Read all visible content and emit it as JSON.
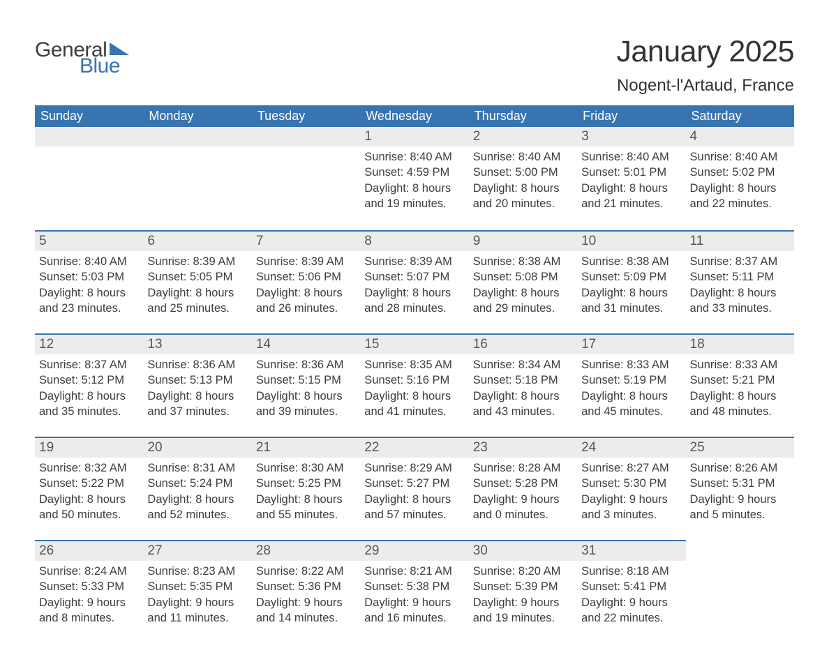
{
  "logo": {
    "word1": "General",
    "word2": "Blue"
  },
  "title": "January 2025",
  "location": "Nogent-l'Artaud, France",
  "colors": {
    "header_bg": "#3874b0",
    "header_text": "#ffffff",
    "daynum_bg": "#ececec",
    "row_border": "#3874b0",
    "text": "#3d3d3d",
    "title_text": "#333333",
    "logo_blue": "#3874b0"
  },
  "fonts": {
    "month_title_pt": 43,
    "location_pt": 24,
    "dayheader_pt": 18,
    "daynum_pt": 19,
    "body_pt": 16.5,
    "logo_pt": 30
  },
  "day_headers": [
    "Sunday",
    "Monday",
    "Tuesday",
    "Wednesday",
    "Thursday",
    "Friday",
    "Saturday"
  ],
  "weeks": [
    [
      {
        "blank": true
      },
      {
        "blank": true
      },
      {
        "blank": true
      },
      {
        "n": "1",
        "sr": "Sunrise: 8:40 AM",
        "ss": "Sunset: 4:59 PM",
        "d1": "Daylight: 8 hours",
        "d2": "and 19 minutes."
      },
      {
        "n": "2",
        "sr": "Sunrise: 8:40 AM",
        "ss": "Sunset: 5:00 PM",
        "d1": "Daylight: 8 hours",
        "d2": "and 20 minutes."
      },
      {
        "n": "3",
        "sr": "Sunrise: 8:40 AM",
        "ss": "Sunset: 5:01 PM",
        "d1": "Daylight: 8 hours",
        "d2": "and 21 minutes."
      },
      {
        "n": "4",
        "sr": "Sunrise: 8:40 AM",
        "ss": "Sunset: 5:02 PM",
        "d1": "Daylight: 8 hours",
        "d2": "and 22 minutes."
      }
    ],
    [
      {
        "n": "5",
        "sr": "Sunrise: 8:40 AM",
        "ss": "Sunset: 5:03 PM",
        "d1": "Daylight: 8 hours",
        "d2": "and 23 minutes."
      },
      {
        "n": "6",
        "sr": "Sunrise: 8:39 AM",
        "ss": "Sunset: 5:05 PM",
        "d1": "Daylight: 8 hours",
        "d2": "and 25 minutes."
      },
      {
        "n": "7",
        "sr": "Sunrise: 8:39 AM",
        "ss": "Sunset: 5:06 PM",
        "d1": "Daylight: 8 hours",
        "d2": "and 26 minutes."
      },
      {
        "n": "8",
        "sr": "Sunrise: 8:39 AM",
        "ss": "Sunset: 5:07 PM",
        "d1": "Daylight: 8 hours",
        "d2": "and 28 minutes."
      },
      {
        "n": "9",
        "sr": "Sunrise: 8:38 AM",
        "ss": "Sunset: 5:08 PM",
        "d1": "Daylight: 8 hours",
        "d2": "and 29 minutes."
      },
      {
        "n": "10",
        "sr": "Sunrise: 8:38 AM",
        "ss": "Sunset: 5:09 PM",
        "d1": "Daylight: 8 hours",
        "d2": "and 31 minutes."
      },
      {
        "n": "11",
        "sr": "Sunrise: 8:37 AM",
        "ss": "Sunset: 5:11 PM",
        "d1": "Daylight: 8 hours",
        "d2": "and 33 minutes."
      }
    ],
    [
      {
        "n": "12",
        "sr": "Sunrise: 8:37 AM",
        "ss": "Sunset: 5:12 PM",
        "d1": "Daylight: 8 hours",
        "d2": "and 35 minutes."
      },
      {
        "n": "13",
        "sr": "Sunrise: 8:36 AM",
        "ss": "Sunset: 5:13 PM",
        "d1": "Daylight: 8 hours",
        "d2": "and 37 minutes."
      },
      {
        "n": "14",
        "sr": "Sunrise: 8:36 AM",
        "ss": "Sunset: 5:15 PM",
        "d1": "Daylight: 8 hours",
        "d2": "and 39 minutes."
      },
      {
        "n": "15",
        "sr": "Sunrise: 8:35 AM",
        "ss": "Sunset: 5:16 PM",
        "d1": "Daylight: 8 hours",
        "d2": "and 41 minutes."
      },
      {
        "n": "16",
        "sr": "Sunrise: 8:34 AM",
        "ss": "Sunset: 5:18 PM",
        "d1": "Daylight: 8 hours",
        "d2": "and 43 minutes."
      },
      {
        "n": "17",
        "sr": "Sunrise: 8:33 AM",
        "ss": "Sunset: 5:19 PM",
        "d1": "Daylight: 8 hours",
        "d2": "and 45 minutes."
      },
      {
        "n": "18",
        "sr": "Sunrise: 8:33 AM",
        "ss": "Sunset: 5:21 PM",
        "d1": "Daylight: 8 hours",
        "d2": "and 48 minutes."
      }
    ],
    [
      {
        "n": "19",
        "sr": "Sunrise: 8:32 AM",
        "ss": "Sunset: 5:22 PM",
        "d1": "Daylight: 8 hours",
        "d2": "and 50 minutes."
      },
      {
        "n": "20",
        "sr": "Sunrise: 8:31 AM",
        "ss": "Sunset: 5:24 PM",
        "d1": "Daylight: 8 hours",
        "d2": "and 52 minutes."
      },
      {
        "n": "21",
        "sr": "Sunrise: 8:30 AM",
        "ss": "Sunset: 5:25 PM",
        "d1": "Daylight: 8 hours",
        "d2": "and 55 minutes."
      },
      {
        "n": "22",
        "sr": "Sunrise: 8:29 AM",
        "ss": "Sunset: 5:27 PM",
        "d1": "Daylight: 8 hours",
        "d2": "and 57 minutes."
      },
      {
        "n": "23",
        "sr": "Sunrise: 8:28 AM",
        "ss": "Sunset: 5:28 PM",
        "d1": "Daylight: 9 hours",
        "d2": "and 0 minutes."
      },
      {
        "n": "24",
        "sr": "Sunrise: 8:27 AM",
        "ss": "Sunset: 5:30 PM",
        "d1": "Daylight: 9 hours",
        "d2": "and 3 minutes."
      },
      {
        "n": "25",
        "sr": "Sunrise: 8:26 AM",
        "ss": "Sunset: 5:31 PM",
        "d1": "Daylight: 9 hours",
        "d2": "and 5 minutes."
      }
    ],
    [
      {
        "n": "26",
        "sr": "Sunrise: 8:24 AM",
        "ss": "Sunset: 5:33 PM",
        "d1": "Daylight: 9 hours",
        "d2": "and 8 minutes."
      },
      {
        "n": "27",
        "sr": "Sunrise: 8:23 AM",
        "ss": "Sunset: 5:35 PM",
        "d1": "Daylight: 9 hours",
        "d2": "and 11 minutes."
      },
      {
        "n": "28",
        "sr": "Sunrise: 8:22 AM",
        "ss": "Sunset: 5:36 PM",
        "d1": "Daylight: 9 hours",
        "d2": "and 14 minutes."
      },
      {
        "n": "29",
        "sr": "Sunrise: 8:21 AM",
        "ss": "Sunset: 5:38 PM",
        "d1": "Daylight: 9 hours",
        "d2": "and 16 minutes."
      },
      {
        "n": "30",
        "sr": "Sunrise: 8:20 AM",
        "ss": "Sunset: 5:39 PM",
        "d1": "Daylight: 9 hours",
        "d2": "and 19 minutes."
      },
      {
        "n": "31",
        "sr": "Sunrise: 8:18 AM",
        "ss": "Sunset: 5:41 PM",
        "d1": "Daylight: 9 hours",
        "d2": "and 22 minutes."
      },
      {
        "blank": true,
        "noborder": true
      }
    ]
  ]
}
